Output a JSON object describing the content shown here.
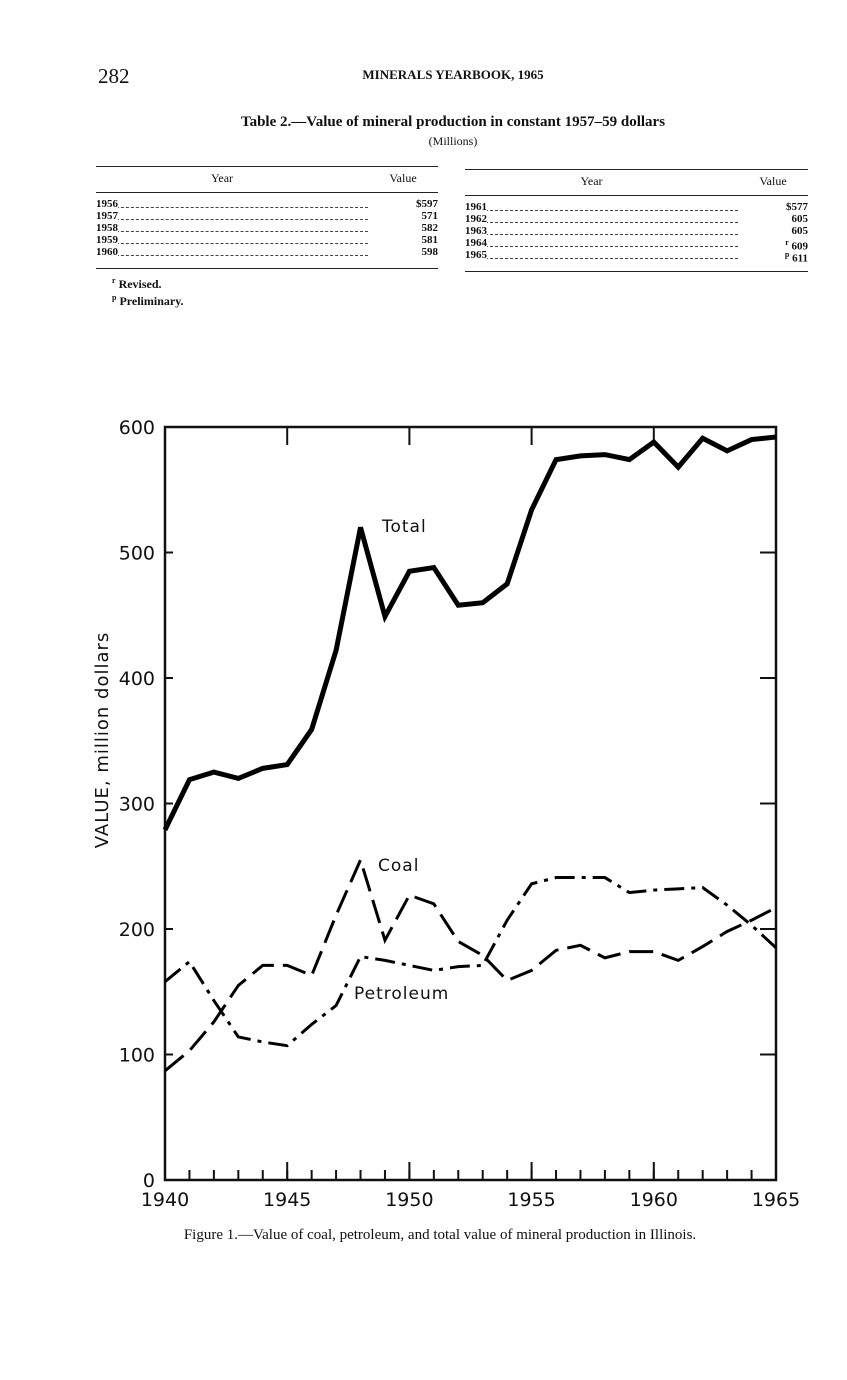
{
  "header": {
    "page_number": "282",
    "running_title": "MINERALS YEARBOOK, 1965"
  },
  "table": {
    "title": "Table 2.—Value of mineral production in constant 1957–59 dollars",
    "subtitle": "(Millions)",
    "halves": [
      {
        "columns": [
          "Year",
          "Value"
        ],
        "rows": [
          {
            "year": "1956",
            "value": "$597"
          },
          {
            "year": "1957",
            "value": "571"
          },
          {
            "year": "1958",
            "value": "582"
          },
          {
            "year": "1959",
            "value": "581"
          },
          {
            "year": "1960",
            "value": "598"
          }
        ]
      },
      {
        "columns": [
          "Year",
          "Value"
        ],
        "rows": [
          {
            "year": "1961",
            "value": "$577"
          },
          {
            "year": "1962",
            "value": "605"
          },
          {
            "year": "1963",
            "value": "605"
          },
          {
            "year": "1964",
            "mark": "r",
            "value": "609"
          },
          {
            "year": "1965",
            "mark": "p",
            "value": "611"
          }
        ]
      }
    ],
    "footnotes": [
      {
        "mark": "r",
        "text": "Revised."
      },
      {
        "mark": "p",
        "text": "Preliminary."
      }
    ]
  },
  "chart_data": {
    "type": "line",
    "caption": "Figure 1.—Value of coal, petroleum, and total value of mineral production in Illinois.",
    "ylabel": "VALUE, million dollars",
    "x": [
      1940,
      1941,
      1942,
      1943,
      1944,
      1945,
      1946,
      1947,
      1948,
      1949,
      1950,
      1951,
      1952,
      1953,
      1954,
      1955,
      1956,
      1957,
      1958,
      1959,
      1960,
      1961,
      1962,
      1963,
      1964,
      1965
    ],
    "series": [
      {
        "name": "Total",
        "color": "#000",
        "style": "solid",
        "values": [
          279,
          319,
          325,
          320,
          328,
          331,
          359,
          422,
          520,
          449,
          485,
          488,
          458,
          460,
          475,
          534,
          574,
          577,
          578,
          574,
          588,
          568,
          591,
          581,
          590,
          592
        ]
      },
      {
        "name": "Coal",
        "color": "#000",
        "style": "dashed",
        "values": [
          87,
          103,
          126,
          155,
          171,
          171,
          163,
          211,
          255,
          191,
          227,
          220,
          190,
          179,
          159,
          167,
          183,
          187,
          177,
          182,
          182,
          175,
          186,
          198,
          207,
          217
        ]
      },
      {
        "name": "Petroleum",
        "color": "#000",
        "style": "dashdot",
        "values": [
          158,
          174,
          143,
          114,
          110,
          107,
          124,
          139,
          178,
          175,
          171,
          167,
          170,
          171,
          207,
          236,
          241,
          241,
          241,
          229,
          231,
          232,
          233,
          219,
          203,
          185
        ]
      }
    ],
    "xlim": [
      1940,
      1965
    ],
    "xticks": [
      1940,
      1945,
      1950,
      1955,
      1960,
      1965
    ],
    "ylim": [
      0,
      600
    ],
    "yticks": [
      0,
      100,
      200,
      300,
      400,
      500,
      600
    ]
  }
}
